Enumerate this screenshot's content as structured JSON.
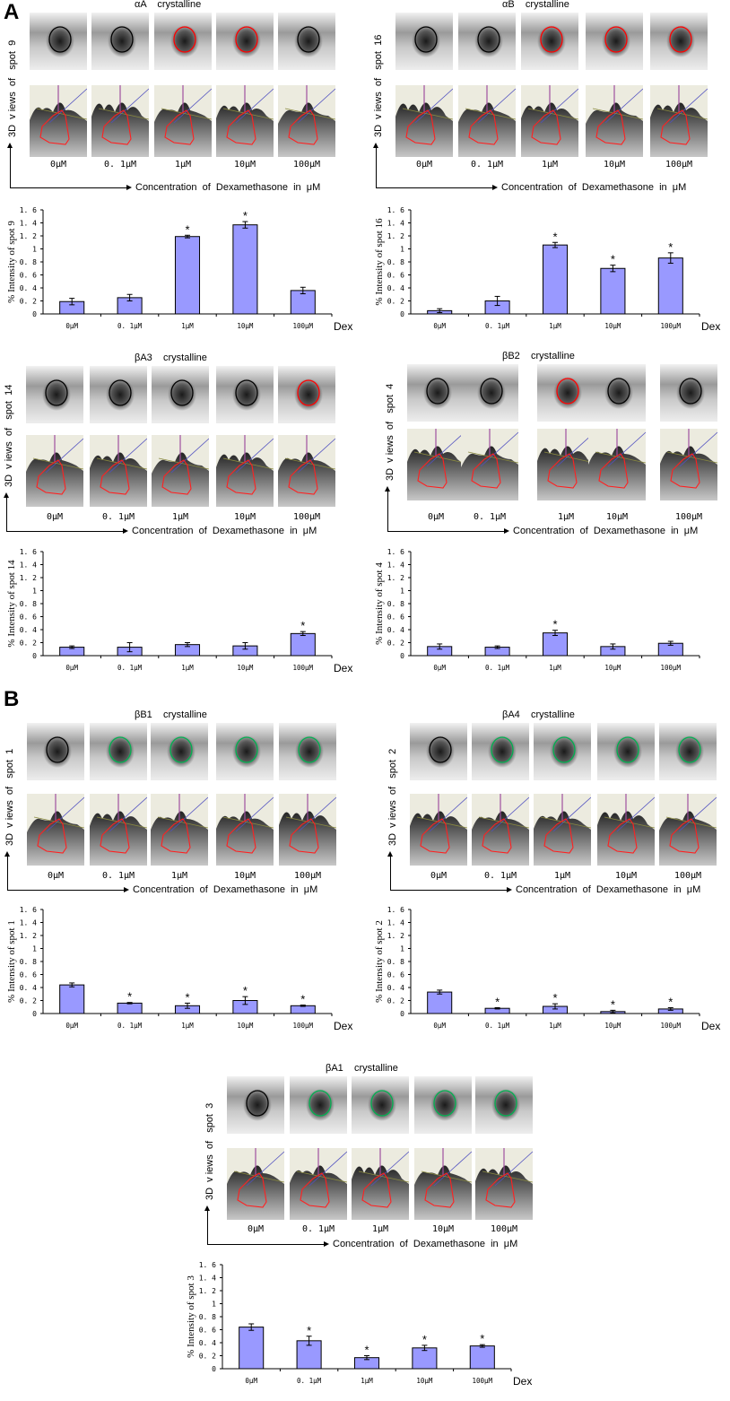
{
  "panels": [
    {
      "id": "A",
      "label": "A"
    },
    {
      "id": "B",
      "label": "B"
    }
  ],
  "common": {
    "concentrations": [
      "0μM",
      "0. 1μM",
      "1μM",
      "10μM",
      "100μM"
    ],
    "x_axis_caption": "Concentration  of  Dexamethasone  in  μM",
    "bar_color": "#9999ff",
    "circle_colors": {
      "control": "#000000",
      "increased": "#ff0000",
      "decreased": "#00b050"
    }
  },
  "blocks": [
    {
      "key": "aA",
      "panel": "A",
      "protein": "αA    crystalline",
      "spot_label": "3D  v iews  of   spot  9",
      "circles": [
        "control",
        "control",
        "increased",
        "increased",
        "control"
      ]
    },
    {
      "key": "aB",
      "panel": "A",
      "protein": "αB    crystalline",
      "spot_label": "3D  v iews  of   spot  16",
      "circles": [
        "control",
        "control",
        "increased",
        "increased",
        "increased"
      ]
    },
    {
      "key": "bA3",
      "panel": "A",
      "protein": "βA3    crystalline",
      "spot_label": "3D  v iews  of   spot  14",
      "circles": [
        "control",
        "control",
        "control",
        "control",
        "increased"
      ]
    },
    {
      "key": "bB2",
      "panel": "A",
      "protein": "βB2    crystalline",
      "spot_label": "3D  v iews  of   spot  4",
      "circles": [
        "control",
        "control",
        "increased",
        "control",
        "control"
      ]
    },
    {
      "key": "bB1",
      "panel": "B",
      "protein": "βB1    crystalline",
      "spot_label": "3D  v iews  of   spot  1",
      "circles": [
        "control",
        "decreased",
        "decreased",
        "decreased",
        "decreased"
      ]
    },
    {
      "key": "bA4",
      "panel": "B",
      "protein": "βA4    crystalline",
      "spot_label": "3D  v iews  of   spot  2",
      "circles": [
        "control",
        "decreased",
        "decreased",
        "decreased",
        "decreased"
      ]
    },
    {
      "key": "bA1",
      "panel": "B",
      "protein": "βA1    crystalline",
      "spot_label": "3D  v iews  of   spot  3",
      "circles": [
        "control",
        "decreased",
        "decreased",
        "decreased",
        "decreased"
      ]
    }
  ],
  "chart_data": [
    {
      "type": "bar",
      "title": "",
      "ylabel": "% Intensity of spot 9",
      "xlabel": "Dex",
      "categories": [
        "0μM",
        "0. 1μM",
        "1μM",
        "10μM",
        "100μM"
      ],
      "values": [
        0.19,
        0.25,
        1.19,
        1.37,
        0.36
      ],
      "errors": [
        0.05,
        0.05,
        0.02,
        0.05,
        0.05
      ],
      "significant": [
        false,
        false,
        true,
        true,
        false
      ],
      "ylim": [
        0,
        1.6
      ],
      "yticks": [
        "0",
        "0. 2",
        "0. 4",
        "0. 6",
        "0. 8",
        "1",
        "1. 2",
        "1. 4",
        "1. 6"
      ],
      "grid": false
    },
    {
      "type": "bar",
      "title": "",
      "ylabel": "% Intensity of spot 16",
      "xlabel": "Dex",
      "categories": [
        "0μM",
        "0. 1μM",
        "1μM",
        "10μM",
        "100μM"
      ],
      "values": [
        0.05,
        0.2,
        1.06,
        0.7,
        0.86
      ],
      "errors": [
        0.03,
        0.07,
        0.04,
        0.05,
        0.08
      ],
      "significant": [
        false,
        false,
        true,
        true,
        true
      ],
      "ylim": [
        0,
        1.6
      ],
      "yticks": [
        "0",
        "0. 2",
        "0. 4",
        "0. 6",
        "0. 8",
        "1",
        "1. 2",
        "1. 4",
        "1. 6"
      ],
      "grid": false
    },
    {
      "type": "bar",
      "title": "",
      "ylabel": "% Intensity of spot 14",
      "xlabel": "Dex",
      "categories": [
        "0μM",
        "0. 1μM",
        "1μM",
        "10μM",
        "100μM"
      ],
      "values": [
        0.13,
        0.13,
        0.17,
        0.15,
        0.34
      ],
      "errors": [
        0.02,
        0.07,
        0.03,
        0.05,
        0.03
      ],
      "significant": [
        false,
        false,
        false,
        false,
        true
      ],
      "ylim": [
        0,
        1.6
      ],
      "yticks": [
        "0",
        "0. 2",
        "0. 4",
        "0. 6",
        "0. 8",
        "1",
        "1. 2",
        "1. 4",
        "1. 6"
      ],
      "grid": false
    },
    {
      "type": "bar",
      "title": "",
      "ylabel": "% Intensity of spot 4",
      "xlabel": "Dex",
      "categories": [
        "0μM",
        "0. 1μM",
        "1μM",
        "10μM",
        "100μM"
      ],
      "values": [
        0.14,
        0.13,
        0.35,
        0.14,
        0.19
      ],
      "errors": [
        0.04,
        0.02,
        0.04,
        0.04,
        0.03
      ],
      "significant": [
        false,
        false,
        true,
        false,
        false
      ],
      "ylim": [
        0,
        1.6
      ],
      "yticks": [
        "0",
        "0. 2",
        "0. 4",
        "0. 6",
        "0. 8",
        "1",
        "1. 2",
        "1. 4",
        "1. 6"
      ],
      "grid": false
    },
    {
      "type": "bar",
      "title": "",
      "ylabel": "% Intensity of spot 1",
      "xlabel": "Dex",
      "categories": [
        "0μM",
        "0. 1μM",
        "1μM",
        "10μM",
        "100μM"
      ],
      "values": [
        0.44,
        0.16,
        0.12,
        0.2,
        0.12
      ],
      "errors": [
        0.03,
        0.01,
        0.04,
        0.06,
        0.01
      ],
      "significant": [
        false,
        true,
        true,
        true,
        true
      ],
      "ylim": [
        0,
        1.6
      ],
      "yticks": [
        "0",
        "0. 2",
        "0. 4",
        "0. 6",
        "0. 8",
        "1",
        "1. 2",
        "1. 4",
        "1. 6"
      ],
      "grid": false
    },
    {
      "type": "bar",
      "title": "",
      "ylabel": "% Intensity of spot 2",
      "xlabel": "Dex",
      "categories": [
        "0μM",
        "0. 1μM",
        "1μM",
        "10μM",
        "100μM"
      ],
      "values": [
        0.33,
        0.08,
        0.11,
        0.03,
        0.07
      ],
      "errors": [
        0.03,
        0.01,
        0.04,
        0.02,
        0.02
      ],
      "significant": [
        false,
        true,
        true,
        true,
        true
      ],
      "ylim": [
        0,
        1.6
      ],
      "yticks": [
        "0",
        "0. 2",
        "0. 4",
        "0. 6",
        "0. 8",
        "1",
        "1. 2",
        "1. 4",
        "1. 6"
      ],
      "grid": false
    },
    {
      "type": "bar",
      "title": "",
      "ylabel": "% Intensity of spot 3",
      "xlabel": "Dex",
      "categories": [
        "0μM",
        "0. 1μM",
        "1μM",
        "10μM",
        "100μM"
      ],
      "values": [
        0.64,
        0.43,
        0.17,
        0.32,
        0.35
      ],
      "errors": [
        0.05,
        0.07,
        0.03,
        0.04,
        0.02
      ],
      "significant": [
        false,
        true,
        true,
        true,
        true
      ],
      "ylim": [
        0,
        1.6
      ],
      "yticks": [
        "0",
        "0. 2",
        "0. 4",
        "0. 6",
        "0. 8",
        "1",
        "1. 2",
        "1. 4",
        "1. 6"
      ],
      "grid": false
    }
  ]
}
